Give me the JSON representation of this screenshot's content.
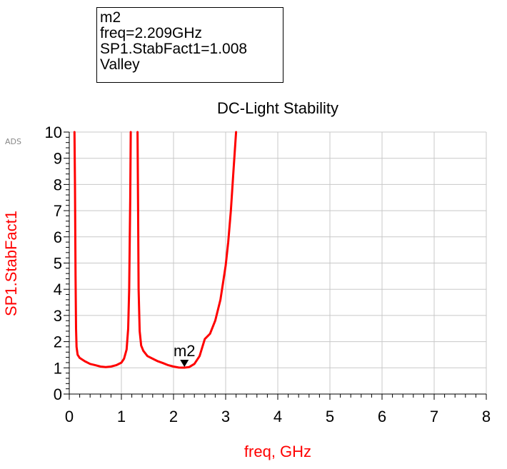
{
  "app_tag": "ADS",
  "marker_box": {
    "lines": [
      "m2",
      "freq=2.209GHz",
      "SP1.StabFact1=1.008",
      "Valley"
    ]
  },
  "colors": {
    "trace": "#ff0000",
    "grid": "#c8c8c8",
    "axis": "#000000",
    "ylabel": "#ff0000",
    "xlabel": "#ff0000"
  },
  "chart_data": {
    "type": "line",
    "title": "DC-Light Stability",
    "xlabel": "freq, GHz",
    "ylabel": "SP1.StabFact1",
    "xlim": [
      0,
      8
    ],
    "ylim": [
      0,
      10
    ],
    "xticks": [
      0,
      1,
      2,
      3,
      4,
      5,
      6,
      7,
      8
    ],
    "yticks": [
      0,
      1,
      2,
      3,
      4,
      5,
      6,
      7,
      8,
      9,
      10
    ],
    "grid": true,
    "series": [
      {
        "x": [
          0.1,
          0.11,
          0.12,
          0.13,
          0.14,
          0.16,
          0.2,
          0.3,
          0.4,
          0.5,
          0.6,
          0.7,
          0.8,
          0.9,
          1.0,
          1.05,
          1.1,
          1.13,
          1.15,
          1.17,
          1.18
        ],
        "y": [
          10,
          8.0,
          4.5,
          2.5,
          1.8,
          1.5,
          1.38,
          1.25,
          1.15,
          1.1,
          1.05,
          1.03,
          1.05,
          1.1,
          1.2,
          1.35,
          1.7,
          2.5,
          4.0,
          7.5,
          10
        ]
      },
      {
        "x": [
          1.31,
          1.32,
          1.33,
          1.35,
          1.38,
          1.42,
          1.5,
          1.6,
          1.7,
          1.8,
          1.9,
          2.0,
          2.1,
          2.209,
          2.3,
          2.4,
          2.5,
          2.6,
          2.65,
          2.7,
          2.8,
          2.9,
          3.0,
          3.05,
          3.1,
          3.15,
          3.2
        ],
        "y": [
          10,
          7.0,
          4.0,
          2.4,
          1.85,
          1.65,
          1.45,
          1.35,
          1.25,
          1.18,
          1.1,
          1.05,
          1.01,
          1.008,
          1.03,
          1.15,
          1.45,
          2.1,
          2.2,
          2.3,
          2.8,
          3.6,
          4.9,
          5.8,
          7.0,
          8.5,
          10
        ]
      }
    ],
    "marker": {
      "label": "m2",
      "x": 2.209,
      "y": 1.008
    }
  }
}
